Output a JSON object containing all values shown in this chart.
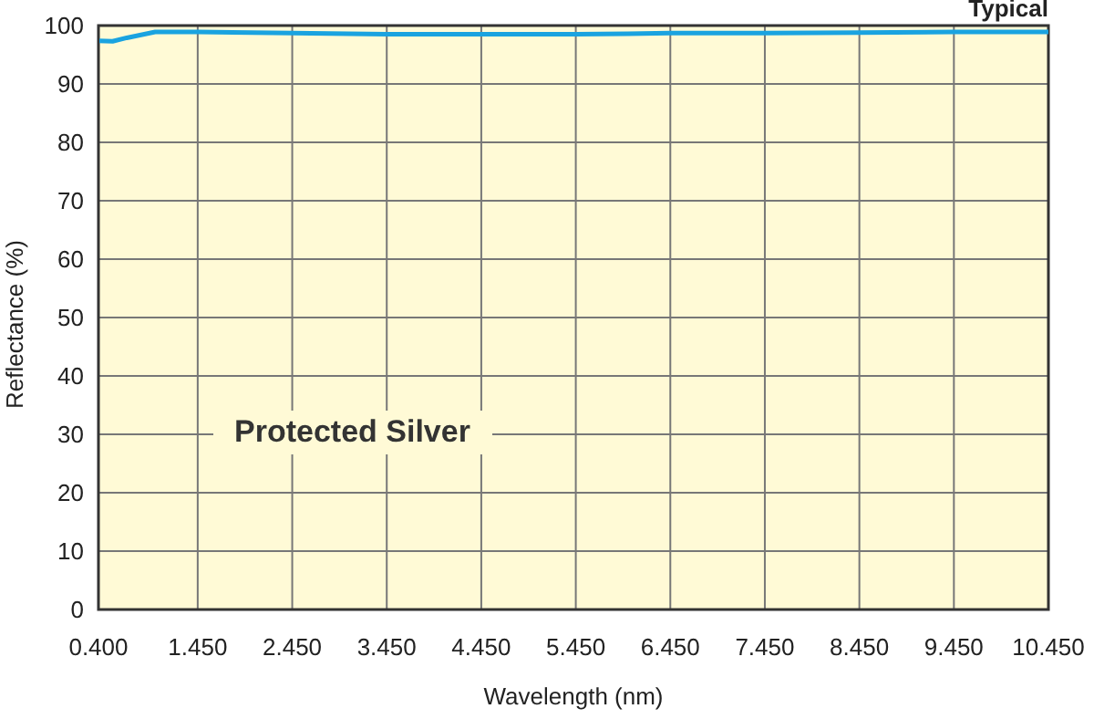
{
  "chart_data": {
    "type": "line",
    "title": "Typical",
    "xlabel": "Wavelength (nm)",
    "ylabel": "Reflectance (%)",
    "series": [
      {
        "name": "Protected Silver",
        "color": "#1aa3e0",
        "x": [
          0.4,
          0.55,
          0.7,
          1.0,
          1.45,
          2.45,
          3.45,
          4.45,
          5.45,
          6.0,
          6.45,
          7.45,
          8.45,
          9.45,
          10.45
        ],
        "values": [
          97.4,
          97.3,
          97.9,
          98.9,
          98.9,
          98.7,
          98.5,
          98.5,
          98.5,
          98.6,
          98.7,
          98.7,
          98.8,
          98.9,
          98.9
        ]
      }
    ],
    "xlim": [
      0.4,
      10.45
    ],
    "xticks": [
      {
        "value": 0.4,
        "label": "0.400"
      },
      {
        "value": 1.45,
        "label": "1.450"
      },
      {
        "value": 2.45,
        "label": "2.450"
      },
      {
        "value": 3.45,
        "label": "3.450"
      },
      {
        "value": 4.45,
        "label": "4.450"
      },
      {
        "value": 5.45,
        "label": "5.450"
      },
      {
        "value": 6.45,
        "label": "6.450"
      },
      {
        "value": 7.45,
        "label": "7.450"
      },
      {
        "value": 8.45,
        "label": "8.450"
      },
      {
        "value": 9.45,
        "label": "9.450"
      },
      {
        "value": 10.45,
        "label": "10.450"
      }
    ],
    "ylim": [
      0,
      100
    ],
    "yticks": [
      0,
      10,
      20,
      30,
      40,
      50,
      60,
      70,
      80,
      90,
      100
    ],
    "grid": true,
    "marker": "none",
    "line_style": "solid"
  }
}
